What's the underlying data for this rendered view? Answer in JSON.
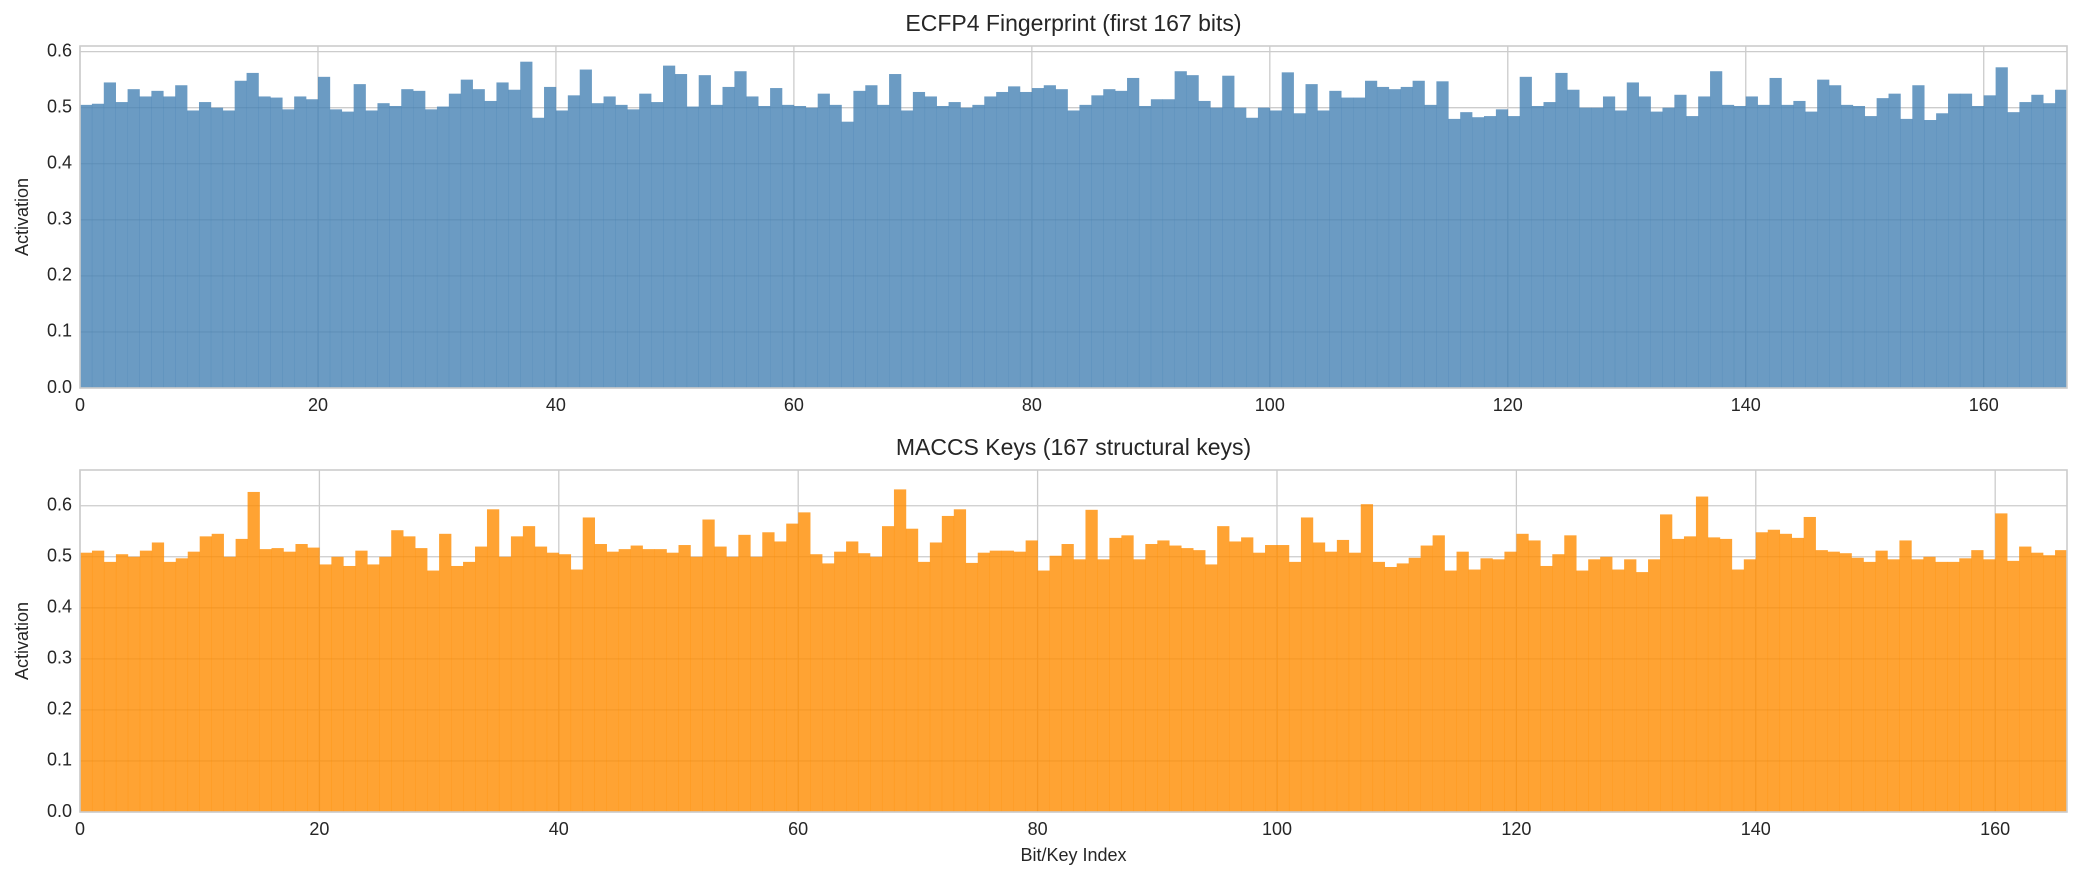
{
  "chart_data": [
    {
      "type": "bar",
      "title": "ECFP4 Fingerprint (first 167 bits)",
      "ylabel": "Activation",
      "x": [
        0,
        1,
        2,
        3,
        4,
        5,
        6,
        7,
        8,
        9,
        10,
        11,
        12,
        13,
        14,
        15,
        16,
        17,
        18,
        19,
        20,
        21,
        22,
        23,
        24,
        25,
        26,
        27,
        28,
        29,
        30,
        31,
        32,
        33,
        34,
        35,
        36,
        37,
        38,
        39,
        40,
        41,
        42,
        43,
        44,
        45,
        46,
        47,
        48,
        49,
        50,
        51,
        52,
        53,
        54,
        55,
        56,
        57,
        58,
        59,
        60,
        61,
        62,
        63,
        64,
        65,
        66,
        67,
        68,
        69,
        70,
        71,
        72,
        73,
        74,
        75,
        76,
        77,
        78,
        79,
        80,
        81,
        82,
        83,
        84,
        85,
        86,
        87,
        88,
        89,
        90,
        91,
        92,
        93,
        94,
        95,
        96,
        97,
        98,
        99,
        100,
        101,
        102,
        103,
        104,
        105,
        106,
        107,
        108,
        109,
        110,
        111,
        112,
        113,
        114,
        115,
        116,
        117,
        118,
        119,
        120,
        121,
        122,
        123,
        124,
        125,
        126,
        127,
        128,
        129,
        130,
        131,
        132,
        133,
        134,
        135,
        136,
        137,
        138,
        139,
        140,
        141,
        142,
        143,
        144,
        145,
        146,
        147,
        148,
        149,
        150,
        151,
        152,
        153,
        154,
        155,
        156,
        157,
        158,
        159,
        160,
        161,
        162,
        163,
        164,
        165,
        166
      ],
      "values": [
        0.505,
        0.507,
        0.545,
        0.51,
        0.533,
        0.52,
        0.53,
        0.52,
        0.54,
        0.495,
        0.51,
        0.5,
        0.495,
        0.548,
        0.562,
        0.52,
        0.518,
        0.497,
        0.52,
        0.515,
        0.555,
        0.497,
        0.493,
        0.542,
        0.495,
        0.508,
        0.503,
        0.533,
        0.53,
        0.497,
        0.502,
        0.525,
        0.55,
        0.533,
        0.512,
        0.545,
        0.532,
        0.582,
        0.482,
        0.537,
        0.495,
        0.522,
        0.568,
        0.508,
        0.52,
        0.505,
        0.497,
        0.525,
        0.51,
        0.575,
        0.56,
        0.502,
        0.558,
        0.505,
        0.537,
        0.565,
        0.52,
        0.503,
        0.535,
        0.505,
        0.503,
        0.5,
        0.525,
        0.505,
        0.475,
        0.53,
        0.54,
        0.505,
        0.56,
        0.495,
        0.528,
        0.52,
        0.503,
        0.51,
        0.5,
        0.505,
        0.52,
        0.528,
        0.538,
        0.528,
        0.535,
        0.54,
        0.533,
        0.495,
        0.505,
        0.522,
        0.533,
        0.53,
        0.553,
        0.503,
        0.515,
        0.515,
        0.565,
        0.558,
        0.512,
        0.5,
        0.557,
        0.5,
        0.482,
        0.5,
        0.495,
        0.563,
        0.49,
        0.542,
        0.495,
        0.53,
        0.518,
        0.518,
        0.548,
        0.537,
        0.533,
        0.537,
        0.548,
        0.505,
        0.547,
        0.48,
        0.492,
        0.483,
        0.485,
        0.497,
        0.485,
        0.555,
        0.503,
        0.51,
        0.562,
        0.532,
        0.5,
        0.5,
        0.52,
        0.495,
        0.545,
        0.52,
        0.493,
        0.5,
        0.523,
        0.485,
        0.52,
        0.565,
        0.505,
        0.503,
        0.52,
        0.505,
        0.553,
        0.505,
        0.512,
        0.493,
        0.55,
        0.54,
        0.505,
        0.503,
        0.485,
        0.517,
        0.525,
        0.48,
        0.54,
        0.478,
        0.49,
        0.525,
        0.525,
        0.503,
        0.522,
        0.572,
        0.492,
        0.51,
        0.523,
        0.508,
        0.532
      ],
      "color": "#4682b4",
      "xlim": [
        0,
        167
      ],
      "ylim": [
        0,
        0.61
      ],
      "xticks": [
        0,
        20,
        40,
        60,
        80,
        100,
        120,
        140,
        160
      ],
      "yticks": [
        {
          "value": 0,
          "label": "0.0"
        },
        {
          "value": 0.1,
          "label": "0.1"
        },
        {
          "value": 0.2,
          "label": "0.2"
        },
        {
          "value": 0.3,
          "label": "0.3"
        },
        {
          "value": 0.4,
          "label": "0.4"
        },
        {
          "value": 0.5,
          "label": "0.5"
        },
        {
          "value": 0.6,
          "label": "0.6"
        }
      ],
      "grid": true
    },
    {
      "type": "bar",
      "title": "MACCS Keys (167 structural keys)",
      "ylabel": "Activation",
      "xlabel": "Bit/Key Index",
      "x": [
        0,
        1,
        2,
        3,
        4,
        5,
        6,
        7,
        8,
        9,
        10,
        11,
        12,
        13,
        14,
        15,
        16,
        17,
        18,
        19,
        20,
        21,
        22,
        23,
        24,
        25,
        26,
        27,
        28,
        29,
        30,
        31,
        32,
        33,
        34,
        35,
        36,
        37,
        38,
        39,
        40,
        41,
        42,
        43,
        44,
        45,
        46,
        47,
        48,
        49,
        50,
        51,
        52,
        53,
        54,
        55,
        56,
        57,
        58,
        59,
        60,
        61,
        62,
        63,
        64,
        65,
        66,
        67,
        68,
        69,
        70,
        71,
        72,
        73,
        74,
        75,
        76,
        77,
        78,
        79,
        80,
        81,
        82,
        83,
        84,
        85,
        86,
        87,
        88,
        89,
        90,
        91,
        92,
        93,
        94,
        95,
        96,
        97,
        98,
        99,
        100,
        101,
        102,
        103,
        104,
        105,
        106,
        107,
        108,
        109,
        110,
        111,
        112,
        113,
        114,
        115,
        116,
        117,
        118,
        119,
        120,
        121,
        122,
        123,
        124,
        125,
        126,
        127,
        128,
        129,
        130,
        131,
        132,
        133,
        134,
        135,
        136,
        137,
        138,
        139,
        140,
        141,
        142,
        143,
        144,
        145,
        146,
        147,
        148,
        149,
        150,
        151,
        152,
        153,
        154,
        155,
        156,
        157,
        158,
        159,
        160,
        161,
        162,
        163,
        164,
        165,
        166
      ],
      "values": [
        0.508,
        0.512,
        0.49,
        0.505,
        0.5,
        0.512,
        0.528,
        0.49,
        0.497,
        0.51,
        0.54,
        0.545,
        0.5,
        0.535,
        0.627,
        0.515,
        0.517,
        0.51,
        0.525,
        0.518,
        0.485,
        0.5,
        0.482,
        0.512,
        0.485,
        0.5,
        0.552,
        0.54,
        0.517,
        0.473,
        0.545,
        0.482,
        0.49,
        0.52,
        0.593,
        0.5,
        0.54,
        0.56,
        0.52,
        0.508,
        0.505,
        0.475,
        0.577,
        0.525,
        0.51,
        0.515,
        0.522,
        0.515,
        0.515,
        0.508,
        0.523,
        0.5,
        0.573,
        0.52,
        0.5,
        0.543,
        0.5,
        0.548,
        0.53,
        0.565,
        0.587,
        0.505,
        0.487,
        0.51,
        0.53,
        0.507,
        0.5,
        0.56,
        0.632,
        0.555,
        0.49,
        0.528,
        0.58,
        0.593,
        0.488,
        0.508,
        0.512,
        0.512,
        0.51,
        0.532,
        0.473,
        0.502,
        0.525,
        0.495,
        0.592,
        0.495,
        0.537,
        0.542,
        0.495,
        0.525,
        0.532,
        0.522,
        0.517,
        0.513,
        0.485,
        0.56,
        0.53,
        0.538,
        0.508,
        0.523,
        0.523,
        0.49,
        0.577,
        0.528,
        0.51,
        0.533,
        0.508,
        0.603,
        0.49,
        0.48,
        0.487,
        0.498,
        0.522,
        0.542,
        0.473,
        0.51,
        0.475,
        0.497,
        0.495,
        0.51,
        0.545,
        0.532,
        0.482,
        0.505,
        0.542,
        0.473,
        0.495,
        0.5,
        0.475,
        0.495,
        0.47,
        0.495,
        0.583,
        0.535,
        0.54,
        0.618,
        0.538,
        0.535,
        0.475,
        0.495,
        0.548,
        0.553,
        0.545,
        0.537,
        0.578,
        0.513,
        0.51,
        0.507,
        0.498,
        0.49,
        0.512,
        0.495,
        0.532,
        0.495,
        0.5,
        0.49,
        0.49,
        0.497,
        0.513,
        0.495,
        0.585,
        0.492,
        0.52,
        0.508,
        0.503,
        0.513,
        0.51
      ],
      "color": "#ff8c00",
      "xlim": [
        0,
        166
      ],
      "ylim": [
        0,
        0.67
      ],
      "xticks": [
        0,
        20,
        40,
        60,
        80,
        100,
        120,
        140,
        160
      ],
      "yticks": [
        {
          "value": 0,
          "label": "0.0"
        },
        {
          "value": 0.1,
          "label": "0.1"
        },
        {
          "value": 0.2,
          "label": "0.2"
        },
        {
          "value": 0.3,
          "label": "0.3"
        },
        {
          "value": 0.4,
          "label": "0.4"
        },
        {
          "value": 0.5,
          "label": "0.5"
        },
        {
          "value": 0.6,
          "label": "0.6"
        }
      ],
      "grid": true
    }
  ]
}
